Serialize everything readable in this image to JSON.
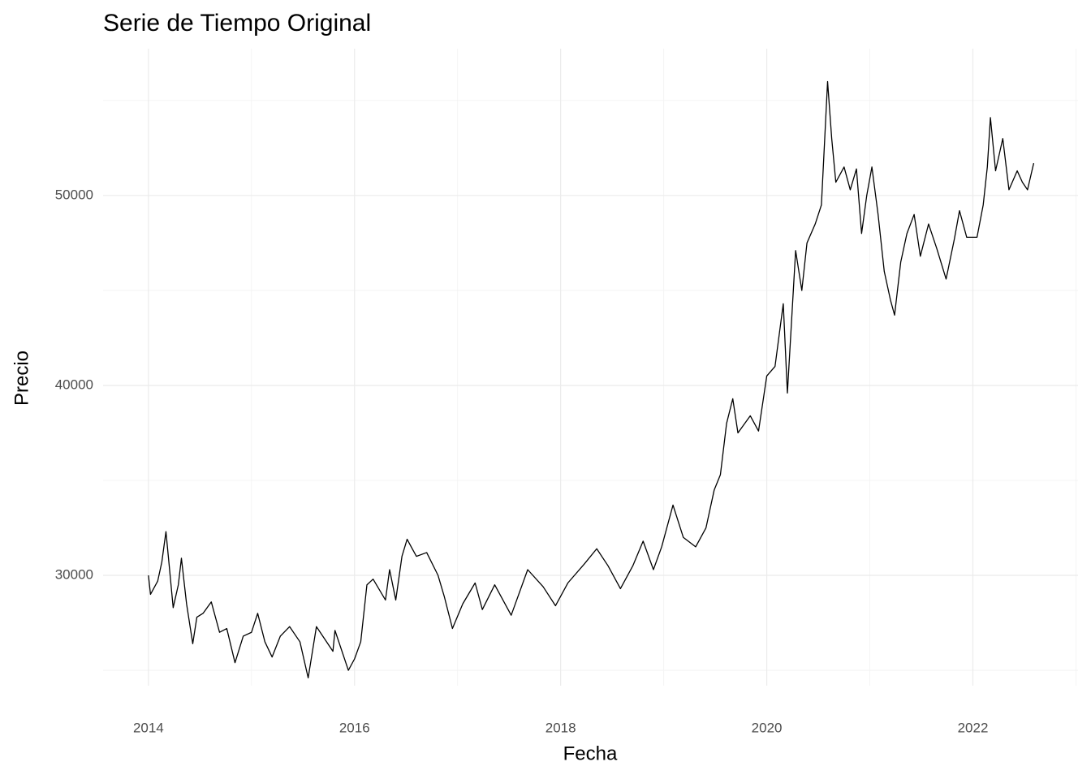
{
  "chart_data": {
    "type": "line",
    "title": "Serie de Tiempo Original",
    "x_label": "Fecha",
    "y_label": "Precio",
    "x": [
      2014.0,
      2014.02,
      2014.09,
      2014.13,
      2014.17,
      2014.2,
      2014.24,
      2014.29,
      2014.32,
      2014.37,
      2014.43,
      2014.47,
      2014.53,
      2014.61,
      2014.69,
      2014.76,
      2014.84,
      2014.92,
      2015.0,
      2015.06,
      2015.13,
      2015.2,
      2015.28,
      2015.37,
      2015.47,
      2015.55,
      2015.63,
      2015.79,
      2015.81,
      2015.94,
      2016.0,
      2016.06,
      2016.12,
      2016.18,
      2016.3,
      2016.34,
      2016.4,
      2016.46,
      2016.51,
      2016.6,
      2016.7,
      2016.81,
      2016.87,
      2016.95,
      2017.05,
      2017.17,
      2017.24,
      2017.36,
      2017.52,
      2017.68,
      2017.83,
      2017.95,
      2018.07,
      2018.23,
      2018.35,
      2018.46,
      2018.58,
      2018.7,
      2018.8,
      2018.9,
      2018.98,
      2019.09,
      2019.19,
      2019.31,
      2019.41,
      2019.49,
      2019.55,
      2019.61,
      2019.67,
      2019.72,
      2019.84,
      2019.92,
      2020.0,
      2020.08,
      2020.16,
      2020.2,
      2020.28,
      2020.34,
      2020.39,
      2020.47,
      2020.53,
      2020.59,
      2020.63,
      2020.67,
      2020.75,
      2020.81,
      2020.87,
      2020.92,
      2020.97,
      2021.02,
      2021.08,
      2021.14,
      2021.2,
      2021.24,
      2021.3,
      2021.36,
      2021.43,
      2021.49,
      2021.57,
      2021.65,
      2021.74,
      2021.82,
      2021.87,
      2021.94,
      2022.04,
      2022.1,
      2022.14,
      2022.17,
      2022.22,
      2022.29,
      2022.35,
      2022.43,
      2022.48,
      2022.53,
      2022.59
    ],
    "series": [
      {
        "color": "#000000",
        "values": [
          30000,
          29000,
          29700,
          30700,
          32300,
          30600,
          28300,
          29500,
          30900,
          28500,
          26400,
          27800,
          28000,
          28600,
          27000,
          27200,
          25400,
          26800,
          27000,
          28000,
          26500,
          25700,
          26800,
          27300,
          26500,
          24600,
          27300,
          26000,
          27100,
          25000,
          25600,
          26500,
          29500,
          29800,
          28700,
          30300,
          28700,
          31000,
          31900,
          31000,
          31200,
          30000,
          28900,
          27200,
          28500,
          29600,
          28200,
          29500,
          27900,
          30300,
          29400,
          28400,
          29600,
          30600,
          31400,
          30500,
          29300,
          30500,
          31800,
          30300,
          31500,
          33700,
          32000,
          31500,
          32500,
          34500,
          35300,
          38000,
          39300,
          37500,
          38400,
          37600,
          40500,
          41000,
          44300,
          39600,
          47100,
          45000,
          47500,
          48500,
          49500,
          56000,
          53000,
          50700,
          51500,
          50300,
          51400,
          48000,
          50000,
          51500,
          49000,
          46000,
          44500,
          43700,
          46500,
          48000,
          49000,
          46800,
          48500,
          47200,
          45600,
          47700,
          49200,
          47800,
          47800,
          49500,
          51500,
          54100,
          51300,
          53000,
          50300,
          51300,
          50700,
          50300,
          51700
        ]
      }
    ],
    "xlim": [
      2013.56,
      2023.02
    ],
    "ylim": [
      24190,
      57730
    ],
    "xticks": [
      2014,
      2016,
      2018,
      2020,
      2022
    ],
    "yticks": [
      30000,
      40000,
      50000
    ],
    "xminor": [
      2015,
      2017,
      2019,
      2021,
      2023
    ],
    "yminor": [
      25000,
      35000,
      45000,
      55000
    ],
    "grid": true
  }
}
